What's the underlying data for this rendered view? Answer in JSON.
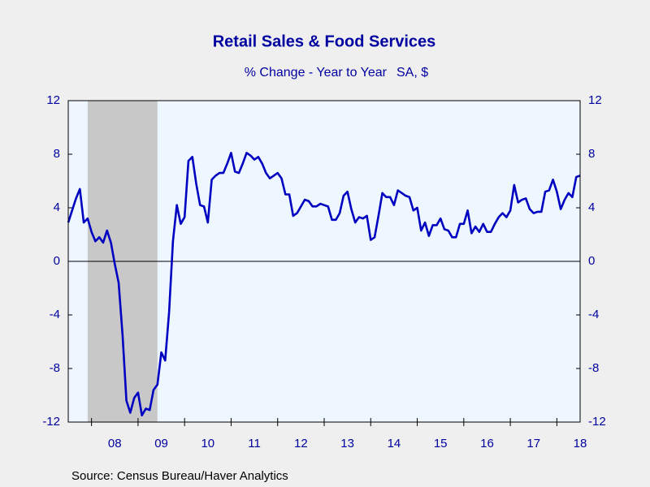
{
  "chart_data": {
    "type": "line",
    "title": "Retail Sales & Food Services",
    "subtitle": "% Change - Year to Year",
    "units": "SA, $",
    "source": "Source:  Census Bureau/Haver Analytics",
    "xlim": [
      2007.5,
      2018.5
    ],
    "xticks": [
      {
        "value": 2008.5,
        "label": "08"
      },
      {
        "value": 2009.5,
        "label": "09"
      },
      {
        "value": 2010.5,
        "label": "10"
      },
      {
        "value": 2011.5,
        "label": "11"
      },
      {
        "value": 2012.5,
        "label": "12"
      },
      {
        "value": 2013.5,
        "label": "13"
      },
      {
        "value": 2014.5,
        "label": "14"
      },
      {
        "value": 2015.5,
        "label": "15"
      },
      {
        "value": 2016.5,
        "label": "16"
      },
      {
        "value": 2017.5,
        "label": "17"
      },
      {
        "value": 2018.5,
        "label": "18"
      }
    ],
    "ylim": [
      -12,
      12
    ],
    "yticks": [
      -12,
      -8,
      -4,
      0,
      4,
      8,
      12
    ],
    "y2lim": [
      -12,
      12
    ],
    "y2ticks": [
      -12,
      -8,
      -4,
      0,
      4,
      8,
      12
    ],
    "zero_line": true,
    "recession": [
      2007.917,
      2009.417
    ],
    "recession_color": "#c8c8c8",
    "plot_background": "#eef6ff",
    "x": [
      2007.5,
      2007.583,
      2007.667,
      2007.75,
      2007.833,
      2007.917,
      2008,
      2008.083,
      2008.167,
      2008.25,
      2008.333,
      2008.417,
      2008.5,
      2008.583,
      2008.667,
      2008.75,
      2008.833,
      2008.917,
      2009,
      2009.083,
      2009.167,
      2009.25,
      2009.333,
      2009.417,
      2009.5,
      2009.583,
      2009.667,
      2009.75,
      2009.833,
      2009.917,
      2010,
      2010.083,
      2010.167,
      2010.25,
      2010.333,
      2010.417,
      2010.5,
      2010.583,
      2010.667,
      2010.75,
      2010.833,
      2010.917,
      2011,
      2011.083,
      2011.167,
      2011.25,
      2011.333,
      2011.417,
      2011.5,
      2011.583,
      2011.667,
      2011.75,
      2011.833,
      2011.917,
      2012,
      2012.083,
      2012.167,
      2012.25,
      2012.333,
      2012.417,
      2012.5,
      2012.583,
      2012.667,
      2012.75,
      2012.833,
      2012.917,
      2013,
      2013.083,
      2013.167,
      2013.25,
      2013.333,
      2013.417,
      2013.5,
      2013.583,
      2013.667,
      2013.75,
      2013.833,
      2013.917,
      2014,
      2014.083,
      2014.167,
      2014.25,
      2014.333,
      2014.417,
      2014.5,
      2014.583,
      2014.667,
      2014.75,
      2014.833,
      2014.917,
      2015,
      2015.083,
      2015.167,
      2015.25,
      2015.333,
      2015.417,
      2015.5,
      2015.583,
      2015.667,
      2015.75,
      2015.833,
      2015.917,
      2016,
      2016.083,
      2016.167,
      2016.25,
      2016.333,
      2016.417,
      2016.5,
      2016.583,
      2016.667,
      2016.75,
      2016.833,
      2016.917,
      2017,
      2017.083,
      2017.167,
      2017.25,
      2017.333,
      2017.417,
      2017.5,
      2017.583,
      2017.667,
      2017.75,
      2017.833,
      2017.917,
      2018,
      2018.083,
      2018.167,
      2018.25,
      2018.333,
      2018.417,
      2018.5
    ],
    "series": [
      {
        "color": "#0000c0",
        "values": [
          2.9,
          3.8,
          4.7,
          5.4,
          2.9,
          3.2,
          2.2,
          1.5,
          1.8,
          1.4,
          2.3,
          1.4,
          -0.2,
          -1.6,
          -5.5,
          -10.4,
          -11.3,
          -10.2,
          -9.8,
          -11.5,
          -11.0,
          -11.1,
          -9.6,
          -9.2,
          -6.8,
          -7.4,
          -3.8,
          1.5,
          4.2,
          2.8,
          3.3,
          7.5,
          7.8,
          5.8,
          4.2,
          4.1,
          2.9,
          6.1,
          6.4,
          6.6,
          6.6,
          7.3,
          8.1,
          6.7,
          6.6,
          7.3,
          8.1,
          7.9,
          7.6,
          7.8,
          7.3,
          6.6,
          6.2,
          6.4,
          6.6,
          6.2,
          5.0,
          5.0,
          3.4,
          3.6,
          4.1,
          4.6,
          4.5,
          4.1,
          4.1,
          4.3,
          4.2,
          4.1,
          3.1,
          3.1,
          3.6,
          4.9,
          5.2,
          3.9,
          2.9,
          3.3,
          3.2,
          3.4,
          1.6,
          1.8,
          3.4,
          5.1,
          4.8,
          4.8,
          4.2,
          5.3,
          5.1,
          4.9,
          4.8,
          3.8,
          4.0,
          2.3,
          2.9,
          1.9,
          2.7,
          2.7,
          3.2,
          2.4,
          2.3,
          1.8,
          1.8,
          2.8,
          2.8,
          3.8,
          2.1,
          2.6,
          2.2,
          2.8,
          2.2,
          2.2,
          2.8,
          3.3,
          3.6,
          3.3,
          3.8,
          5.7,
          4.4,
          4.6,
          4.7,
          3.9,
          3.6,
          3.7,
          3.7,
          5.2,
          5.3,
          6.1,
          5.2,
          3.9,
          4.6,
          5.1,
          4.8,
          6.3,
          6.4
        ]
      }
    ]
  }
}
